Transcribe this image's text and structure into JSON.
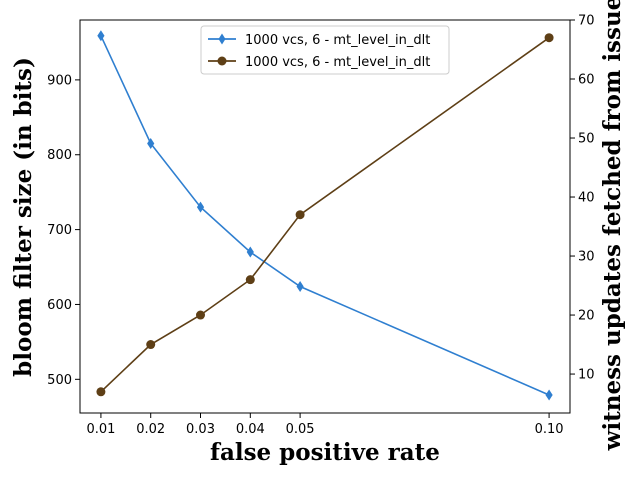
{
  "chart_data": {
    "type": "line",
    "title": "",
    "xlabel": "false positive rate",
    "ylabel_left": "bloom filter size (in bits)",
    "ylabel_right": "witness updates fetched from issuer",
    "x": [
      0.01,
      0.02,
      0.03,
      0.04,
      0.05,
      0.1
    ],
    "xticks": [
      "0.01",
      "0.02",
      "0.03",
      "0.04",
      "0.05",
      "0.10"
    ],
    "xlim": [
      0.0058,
      0.1042
    ],
    "ylim_left": [
      455,
      980
    ],
    "yticks_left": [
      "500",
      "600",
      "700",
      "800",
      "900"
    ],
    "ylim_right": [
      3.4,
      70
    ],
    "yticks_right": [
      "10",
      "20",
      "30",
      "40",
      "50",
      "60",
      "70"
    ],
    "grid": false,
    "legend_placement": "top-center",
    "series": [
      {
        "name": "1000 vcs, 6 - mt_level_in_dlt",
        "axis": "left",
        "marker": "diamond",
        "color": "#2f7fd0",
        "values": [
          959,
          815,
          730,
          670,
          624,
          479
        ]
      },
      {
        "name": "1000 vcs, 6 - mt_level_in_dlt",
        "axis": "right",
        "marker": "circle",
        "color": "#5e3f16",
        "values": [
          7,
          15,
          20,
          26,
          37,
          67
        ]
      }
    ]
  }
}
